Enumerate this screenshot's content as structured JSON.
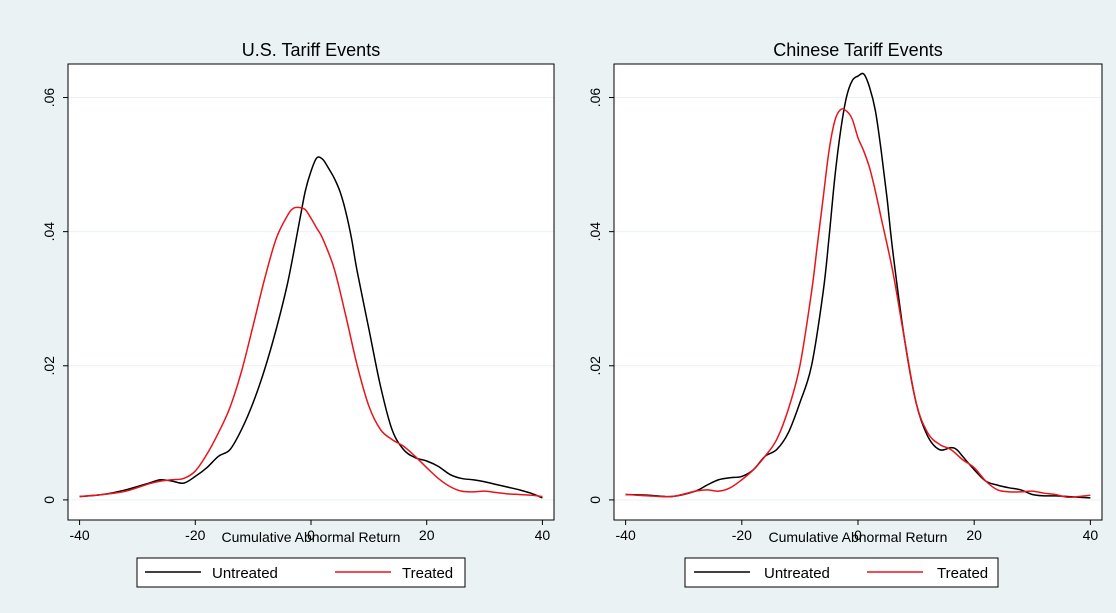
{
  "colors": {
    "outer_background": "#EAF2F3",
    "plot_background": "#FFFFFF",
    "gridline": "#EAF2F3",
    "untreated": "#000000",
    "treated": "#E8141B"
  },
  "legend": {
    "untreated_label": "Untreated",
    "treated_label": "Treated"
  },
  "chart_data": [
    {
      "type": "line",
      "title": "U.S. Tariff Events",
      "xlabel": "Cumulative Abnormal Return",
      "ylabel": "",
      "xlim": [
        -42,
        42
      ],
      "ylim": [
        -0.003,
        0.065
      ],
      "xticks": [
        -40,
        -20,
        0,
        20,
        40
      ],
      "xtick_labels": [
        "-40",
        "-20",
        "0",
        "20",
        "40"
      ],
      "yticks": [
        0,
        0.02,
        0.04,
        0.06
      ],
      "ytick_labels": [
        "0",
        ".02",
        ".04",
        ".06"
      ],
      "grid": true,
      "legend_position": "bottom",
      "series": [
        {
          "name": "Untreated",
          "color": "#000000",
          "x": [
            -40,
            -36,
            -32,
            -28,
            -26,
            -24,
            -22,
            -20,
            -18,
            -16,
            -14,
            -12,
            -10,
            -8,
            -6,
            -4,
            -2,
            -1,
            0,
            1,
            2,
            3,
            4,
            5,
            6,
            7,
            8,
            10,
            12,
            14,
            16,
            18,
            20,
            22,
            24,
            26,
            28,
            30,
            32,
            34,
            36,
            38,
            40
          ],
          "y": [
            0.0005,
            0.0008,
            0.0015,
            0.0025,
            0.003,
            0.0028,
            0.0025,
            0.0035,
            0.0048,
            0.0065,
            0.0075,
            0.0105,
            0.0145,
            0.0195,
            0.0255,
            0.0325,
            0.0415,
            0.046,
            0.049,
            0.051,
            0.0508,
            0.0495,
            0.048,
            0.046,
            0.043,
            0.039,
            0.034,
            0.0255,
            0.017,
            0.0105,
            0.0075,
            0.0063,
            0.0058,
            0.005,
            0.0038,
            0.0032,
            0.003,
            0.0027,
            0.0023,
            0.0019,
            0.0015,
            0.001,
            0.0003
          ]
        },
        {
          "name": "Treated",
          "color": "#E8141B",
          "x": [
            -40,
            -36,
            -32,
            -28,
            -26,
            -24,
            -22,
            -20,
            -18,
            -16,
            -14,
            -12,
            -10,
            -8,
            -6,
            -4,
            -3,
            -2,
            -1,
            0,
            1,
            2,
            4,
            6,
            8,
            10,
            12,
            14,
            16,
            18,
            20,
            22,
            24,
            26,
            28,
            30,
            32,
            34,
            36,
            38,
            40
          ],
          "y": [
            0.0005,
            0.0008,
            0.0013,
            0.0024,
            0.0028,
            0.003,
            0.0032,
            0.0043,
            0.0068,
            0.01,
            0.0138,
            0.0192,
            0.026,
            0.033,
            0.039,
            0.0425,
            0.0435,
            0.0436,
            0.0433,
            0.042,
            0.0405,
            0.039,
            0.0345,
            0.0275,
            0.02,
            0.014,
            0.0105,
            0.009,
            0.008,
            0.0065,
            0.0048,
            0.0032,
            0.002,
            0.0013,
            0.0012,
            0.0013,
            0.0011,
            0.0009,
            0.0008,
            0.0007,
            0.0005
          ]
        }
      ]
    },
    {
      "type": "line",
      "title": "Chinese Tariff Events",
      "xlabel": "Cumulative Abnormal Return",
      "ylabel": "",
      "xlim": [
        -42,
        42
      ],
      "ylim": [
        -0.003,
        0.065
      ],
      "xticks": [
        -40,
        -20,
        0,
        20,
        40
      ],
      "xtick_labels": [
        "-40",
        "-20",
        "0",
        "20",
        "40"
      ],
      "yticks": [
        0,
        0.02,
        0.04,
        0.06
      ],
      "ytick_labels": [
        "0",
        ".02",
        ".04",
        ".06"
      ],
      "grid": true,
      "legend_position": "bottom",
      "series": [
        {
          "name": "Untreated",
          "color": "#000000",
          "x": [
            -40,
            -36,
            -32,
            -28,
            -26,
            -24,
            -22,
            -20,
            -18,
            -16,
            -14,
            -12,
            -10,
            -8,
            -6,
            -5,
            -4,
            -3,
            -2,
            -1,
            0,
            1,
            2,
            3,
            4,
            5,
            6,
            8,
            10,
            12,
            14,
            16,
            17,
            18,
            20,
            22,
            24,
            26,
            28,
            30,
            32,
            34,
            36,
            38,
            40
          ],
          "y": [
            0.0008,
            0.0007,
            0.0005,
            0.0013,
            0.0022,
            0.003,
            0.0033,
            0.0035,
            0.0045,
            0.0065,
            0.0075,
            0.01,
            0.0145,
            0.02,
            0.031,
            0.039,
            0.048,
            0.055,
            0.06,
            0.0625,
            0.0632,
            0.0635,
            0.0615,
            0.058,
            0.052,
            0.045,
            0.037,
            0.024,
            0.0145,
            0.0095,
            0.0075,
            0.0078,
            0.0075,
            0.0065,
            0.0045,
            0.0028,
            0.0022,
            0.0018,
            0.0015,
            0.0008,
            0.0006,
            0.0006,
            0.0005,
            0.0004,
            0.0003
          ]
        },
        {
          "name": "Treated",
          "color": "#E8141B",
          "x": [
            -40,
            -36,
            -32,
            -28,
            -26,
            -24,
            -22,
            -20,
            -18,
            -16,
            -14,
            -12,
            -10,
            -8,
            -7,
            -6,
            -5,
            -4,
            -3,
            -2,
            -1,
            0,
            1,
            2,
            3,
            4,
            6,
            8,
            10,
            12,
            14,
            16,
            18,
            20,
            22,
            24,
            26,
            28,
            30,
            32,
            34,
            36,
            38,
            40
          ],
          "y": [
            0.0008,
            0.0006,
            0.0005,
            0.0013,
            0.0015,
            0.0013,
            0.0018,
            0.003,
            0.0045,
            0.0065,
            0.009,
            0.0135,
            0.02,
            0.031,
            0.038,
            0.045,
            0.052,
            0.0565,
            0.0582,
            0.058,
            0.0568,
            0.054,
            0.052,
            0.0495,
            0.046,
            0.042,
            0.034,
            0.024,
            0.0145,
            0.01,
            0.0083,
            0.0075,
            0.006,
            0.0048,
            0.0028,
            0.0015,
            0.0012,
            0.0012,
            0.0013,
            0.001,
            0.0008,
            0.0004,
            0.0005,
            0.0007
          ]
        }
      ]
    }
  ]
}
